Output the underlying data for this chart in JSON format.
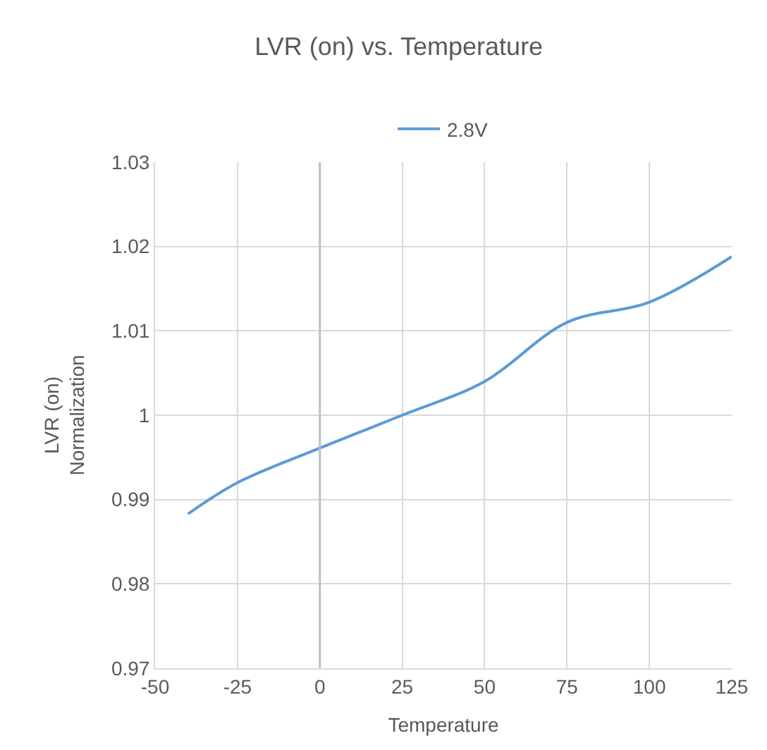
{
  "chart_data": {
    "type": "line",
    "title": "LVR (on) vs. Temperature",
    "xlabel": "Temperature",
    "ylabel": "LVR (on)\nNormalization",
    "x": [
      -40,
      -25,
      0,
      25,
      50,
      75,
      100,
      125
    ],
    "series": [
      {
        "name": "2.8V",
        "color": "#5b9bd5",
        "values": [
          0.9883,
          0.992,
          0.9961,
          1.0,
          1.004,
          1.011,
          1.0134,
          1.0188
        ]
      }
    ],
    "xlim": [
      -50,
      125
    ],
    "xticks": [
      -50,
      -25,
      0,
      25,
      50,
      75,
      100,
      125
    ],
    "ylim": [
      0.97,
      1.03
    ],
    "yticks": [
      0.97,
      0.98,
      0.99,
      1,
      1.01,
      1.02,
      1.03
    ],
    "ref_lines": [
      {
        "axis": "x",
        "value": 0,
        "color": "#bfbfbf"
      }
    ],
    "grid": true,
    "legend": "top",
    "marker": "none",
    "line_style": "solid"
  }
}
